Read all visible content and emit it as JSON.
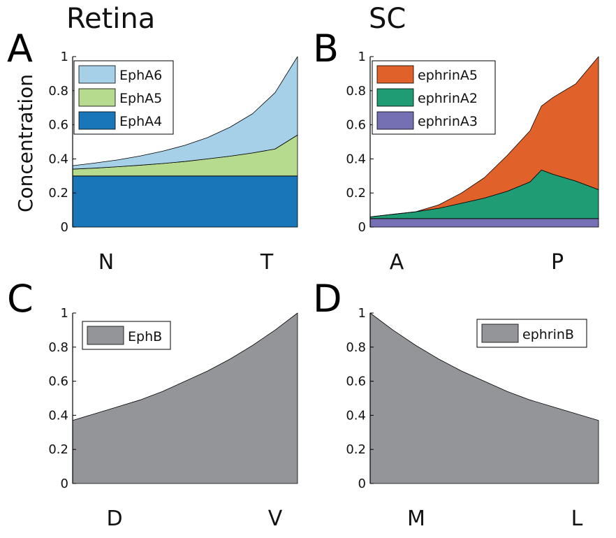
{
  "colors": {
    "epha6": "#a6d0e8",
    "epha5": "#b6da8e",
    "epha4": "#1977b9",
    "ephrina5": "#e0622a",
    "ephrina2": "#1f9c73",
    "ephrina3": "#7570b3",
    "gray": "#939598"
  },
  "chart_data": [
    {
      "panel": "A",
      "type": "area",
      "title": "Retina",
      "ylabel": "Concentration",
      "xlabel_start": "N",
      "xlabel_end": "T",
      "ylim": [
        0,
        1
      ],
      "yticks": [
        "0",
        "0.2",
        "0.4",
        "0.6",
        "0.8",
        "1"
      ],
      "legend_position": "top-left",
      "x": [
        0,
        0.1,
        0.2,
        0.3,
        0.4,
        0.5,
        0.6,
        0.7,
        0.8,
        0.9,
        1.0
      ],
      "series": [
        {
          "name": "EphA4",
          "color_key": "epha4",
          "values": [
            0.3,
            0.3,
            0.3,
            0.3,
            0.3,
            0.3,
            0.3,
            0.3,
            0.3,
            0.3,
            0.3
          ]
        },
        {
          "name": "EphA5",
          "color_key": "epha5",
          "values": [
            0.04,
            0.046,
            0.054,
            0.063,
            0.073,
            0.085,
            0.1,
            0.116,
            0.135,
            0.158,
            0.24
          ]
        },
        {
          "name": "EphA6",
          "color_key": "epha6",
          "values": [
            0.02,
            0.03,
            0.04,
            0.054,
            0.072,
            0.095,
            0.125,
            0.17,
            0.23,
            0.33,
            0.46
          ]
        }
      ],
      "legend_order": [
        "EphA6",
        "EphA5",
        "EphA4"
      ]
    },
    {
      "panel": "B",
      "type": "area",
      "title": "SC",
      "ylabel": "",
      "xlabel_start": "A",
      "xlabel_end": "P",
      "ylim": [
        0,
        1
      ],
      "yticks": [
        "0",
        "0.2",
        "0.4",
        "0.6",
        "0.8",
        "1"
      ],
      "legend_position": "top-left",
      "x": [
        0,
        0.1,
        0.2,
        0.3,
        0.4,
        0.5,
        0.6,
        0.7,
        0.75,
        0.8,
        0.9,
        1.0
      ],
      "series": [
        {
          "name": "ephrinA3",
          "color_key": "ephrina3",
          "values": [
            0.05,
            0.05,
            0.05,
            0.05,
            0.05,
            0.05,
            0.05,
            0.05,
            0.05,
            0.05,
            0.05,
            0.05
          ]
        },
        {
          "name": "ephrinA2",
          "color_key": "ephrina2",
          "values": [
            0.01,
            0.025,
            0.04,
            0.06,
            0.09,
            0.12,
            0.16,
            0.215,
            0.285,
            0.26,
            0.22,
            0.17
          ]
        },
        {
          "name": "ephrinA5",
          "color_key": "ephrina5",
          "values": [
            0.0,
            0.0,
            0.0,
            0.02,
            0.06,
            0.12,
            0.21,
            0.3,
            0.375,
            0.45,
            0.57,
            0.78
          ]
        }
      ],
      "legend_order": [
        "ephrinA5",
        "ephrinA2",
        "ephrinA3"
      ]
    },
    {
      "panel": "C",
      "type": "area",
      "title": "",
      "ylabel": "",
      "xlabel_start": "D",
      "xlabel_end": "V",
      "ylim": [
        0,
        1
      ],
      "yticks": [
        "0",
        "0.2",
        "0.4",
        "0.6",
        "0.8",
        "1"
      ],
      "legend_position": "top-left",
      "x": [
        0,
        0.1,
        0.2,
        0.3,
        0.4,
        0.5,
        0.6,
        0.7,
        0.8,
        0.9,
        1.0
      ],
      "series": [
        {
          "name": "EphB",
          "color_key": "gray",
          "values": [
            0.37,
            0.41,
            0.45,
            0.49,
            0.54,
            0.6,
            0.66,
            0.73,
            0.81,
            0.9,
            1.0
          ]
        }
      ],
      "legend_order": [
        "EphB"
      ]
    },
    {
      "panel": "D",
      "type": "area",
      "title": "",
      "ylabel": "",
      "xlabel_start": "M",
      "xlabel_end": "L",
      "ylim": [
        0,
        1
      ],
      "yticks": [
        "0",
        "0.2",
        "0.4",
        "0.6",
        "0.8",
        "1"
      ],
      "legend_position": "top-right",
      "x": [
        0,
        0.1,
        0.2,
        0.3,
        0.4,
        0.5,
        0.6,
        0.7,
        0.8,
        0.9,
        1.0
      ],
      "series": [
        {
          "name": "ephrinB",
          "color_key": "gray",
          "values": [
            1.0,
            0.9,
            0.81,
            0.73,
            0.66,
            0.6,
            0.54,
            0.49,
            0.45,
            0.41,
            0.37
          ]
        }
      ],
      "legend_order": [
        "ephrinB"
      ]
    }
  ]
}
